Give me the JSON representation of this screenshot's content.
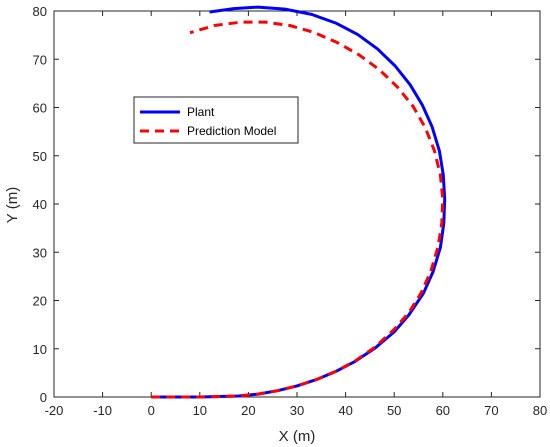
{
  "chart_data": {
    "type": "line",
    "xlabel": "X (m)",
    "ylabel": "Y (m)",
    "xlim": [
      -20,
      80
    ],
    "ylim": [
      0,
      80
    ],
    "xticks": [
      -20,
      -10,
      0,
      10,
      20,
      30,
      40,
      50,
      60,
      70,
      80
    ],
    "yticks": [
      0,
      10,
      20,
      30,
      40,
      50,
      60,
      70,
      80
    ],
    "grid": false,
    "legend_position": "upper-left",
    "series": [
      {
        "name": "Plant",
        "color": "#0000ff",
        "style": "solid",
        "x": [
          0,
          10,
          18,
          22,
          26,
          30,
          34,
          38,
          42,
          46,
          50,
          53,
          56,
          58,
          59.5,
          60.2,
          60.4,
          60.1,
          59.3,
          57.8,
          55.8,
          53.3,
          50.2,
          46.6,
          42.5,
          38,
          33,
          27.5,
          22,
          17,
          12
        ],
        "y": [
          0,
          0,
          0.2,
          0.6,
          1.3,
          2.3,
          3.6,
          5.3,
          7.4,
          10.1,
          13.5,
          17,
          21.5,
          26,
          31,
          36,
          41,
          46,
          51,
          56,
          60.5,
          64.7,
          68.6,
          72.1,
          75.1,
          77.5,
          79.3,
          80.4,
          80.8,
          80.5,
          79.8
        ]
      },
      {
        "name": "Prediction Model",
        "color": "#ff0000",
        "style": "dashed",
        "x": [
          0,
          10,
          18,
          22,
          26,
          30,
          34,
          38,
          42,
          46,
          50,
          53,
          55.5,
          57.5,
          59,
          59.8,
          60,
          59.5,
          58.3,
          56.4,
          53.9,
          50.7,
          47,
          42.8,
          38.2,
          33.4,
          28.5,
          23.5,
          18.5,
          13,
          8
        ],
        "y": [
          0,
          0,
          0.2,
          0.6,
          1.3,
          2.3,
          3.6,
          5.3,
          7.5,
          10.3,
          14,
          17.5,
          21.5,
          26,
          31,
          36,
          41,
          46,
          51,
          55.8,
          60.2,
          64.2,
          67.8,
          70.9,
          73.5,
          75.6,
          77,
          77.7,
          77.7,
          77,
          75.5
        ]
      }
    ]
  }
}
